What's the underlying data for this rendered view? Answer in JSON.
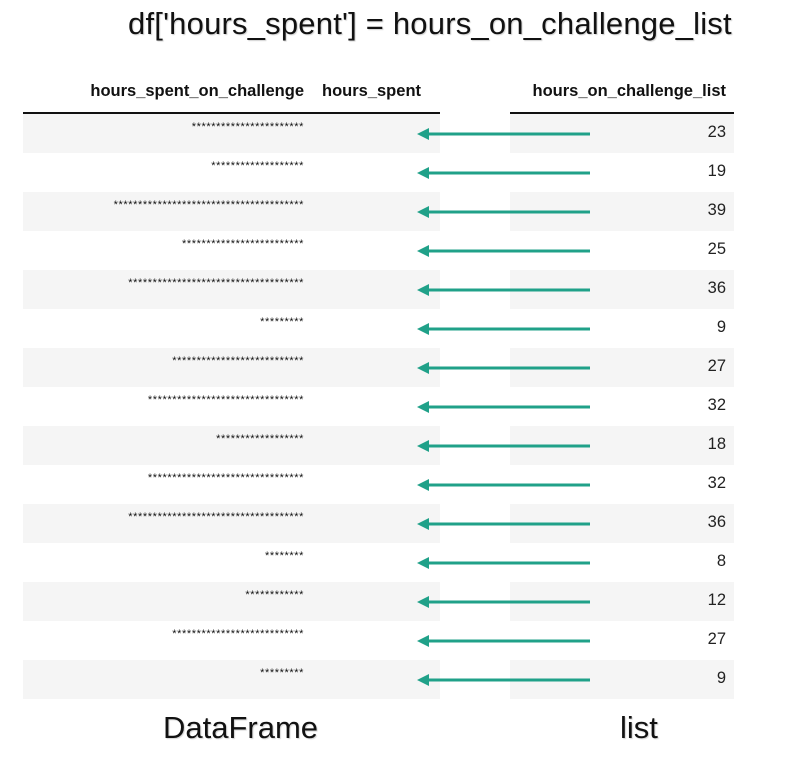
{
  "title": "df['hours_spent'] = hours_on_challenge_list",
  "headers": {
    "col1": "hours_spent_on_challenge",
    "col2": "hours_spent",
    "col3": "hours_on_challenge_list"
  },
  "rows": [
    {
      "stars": "***********************",
      "value": "23"
    },
    {
      "stars": "*******************",
      "value": "19"
    },
    {
      "stars": "***************************************",
      "value": "39"
    },
    {
      "stars": "*************************",
      "value": "25"
    },
    {
      "stars": "************************************",
      "value": "36"
    },
    {
      "stars": "*********",
      "value": "9"
    },
    {
      "stars": "***************************",
      "value": "27"
    },
    {
      "stars": "********************************",
      "value": "32"
    },
    {
      "stars": "******************",
      "value": "18"
    },
    {
      "stars": "********************************",
      "value": "32"
    },
    {
      "stars": "************************************",
      "value": "36"
    },
    {
      "stars": "********",
      "value": "8"
    },
    {
      "stars": "************",
      "value": "12"
    },
    {
      "stars": "***************************",
      "value": "27"
    },
    {
      "stars": "*********",
      "value": "9"
    }
  ],
  "captions": {
    "dataframe": "DataFrame",
    "list": "list"
  },
  "colors": {
    "arrow": "#20a189",
    "text": "#111111",
    "stripe": "#f5f5f5"
  }
}
